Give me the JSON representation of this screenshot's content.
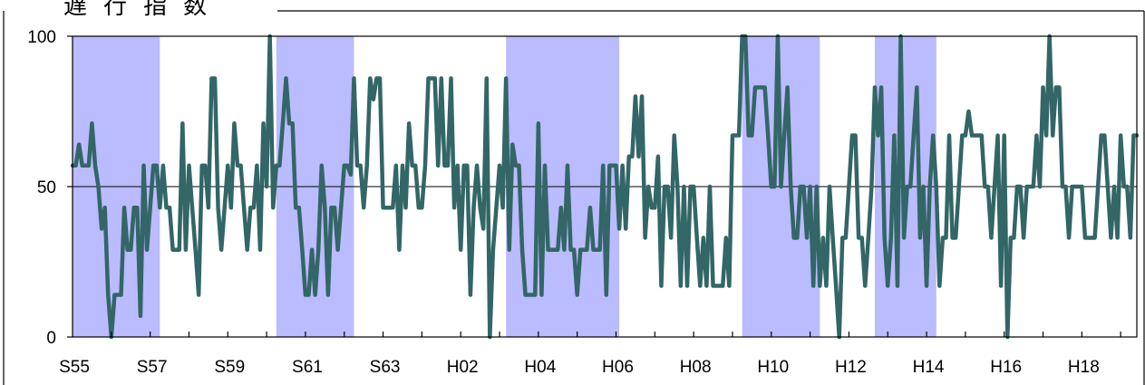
{
  "title": "遅行指数",
  "chart_data": {
    "type": "line",
    "title": "遅行指数",
    "xlabel": "",
    "ylabel": "",
    "ylim": [
      0,
      100
    ],
    "y_ticks": [
      0,
      50,
      100
    ],
    "x_ticks": [
      "S55",
      "S57",
      "S59",
      "S61",
      "S63",
      "H02",
      "H04",
      "H06",
      "H08",
      "H10",
      "H12",
      "H14",
      "H16",
      "H18"
    ],
    "x_tick_months": [
      0,
      24,
      48,
      72,
      96,
      120,
      144,
      168,
      192,
      216,
      240,
      264,
      288,
      312
    ],
    "x_range_months": [
      0,
      329
    ],
    "reference_line": 50,
    "grid": false,
    "legend": "none",
    "colors": {
      "line": "#336666",
      "band": "#bbbbff",
      "reference": "#000000",
      "axis": "#000000"
    },
    "shaded_periods_months": [
      [
        0,
        27
      ],
      [
        63,
        87
      ],
      [
        134,
        169
      ],
      [
        207,
        231
      ],
      [
        248,
        267
      ]
    ],
    "series": [
      {
        "name": "",
        "values": [
          57,
          57,
          64,
          57,
          57,
          57,
          71,
          57,
          50,
          36,
          43,
          14,
          0,
          14,
          14,
          14,
          43,
          29,
          29,
          43,
          43,
          7,
          57,
          29,
          43,
          57,
          57,
          43,
          57,
          43,
          43,
          29,
          29,
          29,
          71,
          29,
          57,
          43,
          29,
          14,
          57,
          57,
          43,
          86,
          86,
          43,
          29,
          43,
          57,
          43,
          71,
          57,
          57,
          43,
          29,
          43,
          43,
          57,
          29,
          71,
          50,
          100,
          43,
          57,
          57,
          71,
          86,
          71,
          71,
          43,
          43,
          29,
          14,
          14,
          29,
          14,
          29,
          57,
          43,
          14,
          43,
          43,
          29,
          43,
          57,
          57,
          54,
          86,
          57,
          57,
          43,
          57,
          86,
          79,
          86,
          86,
          43,
          43,
          43,
          43,
          57,
          29,
          57,
          43,
          71,
          57,
          57,
          43,
          43,
          57,
          86,
          86,
          86,
          57,
          86,
          57,
          57,
          86,
          43,
          57,
          29,
          57,
          57,
          14,
          43,
          57,
          43,
          36,
          86,
          0,
          29,
          43,
          57,
          43,
          86,
          29,
          64,
          57,
          57,
          29,
          14,
          14,
          14,
          14,
          71,
          14,
          57,
          29,
          29,
          29,
          29,
          43,
          29,
          57,
          29,
          29,
          14,
          29,
          29,
          29,
          43,
          29,
          29,
          29,
          57,
          14,
          57,
          57,
          57,
          36,
          57,
          36,
          60,
          60,
          80,
          60,
          80,
          33,
          50,
          43,
          43,
          60,
          17,
          50,
          50,
          33,
          67,
          50,
          17,
          50,
          17,
          50,
          50,
          33,
          17,
          33,
          17,
          50,
          17,
          17,
          17,
          17,
          33,
          17,
          67,
          67,
          67,
          100,
          100,
          67,
          67,
          83,
          83,
          83,
          83,
          67,
          50,
          50,
          100,
          50,
          67,
          83,
          50,
          33,
          33,
          50,
          50,
          33,
          50,
          17,
          50,
          17,
          33,
          17,
          50,
          33,
          17,
          0,
          33,
          33,
          50,
          67,
          67,
          33,
          33,
          17,
          33,
          50,
          83,
          67,
          83,
          33,
          17,
          33,
          67,
          17,
          100,
          33,
          50,
          50,
          67,
          83,
          33,
          50,
          17,
          50,
          67,
          50,
          17,
          33,
          33,
          67,
          33,
          33,
          50,
          67,
          67,
          75,
          67,
          67,
          67,
          67,
          50,
          50,
          33,
          50,
          67,
          17,
          67,
          0,
          33,
          33,
          50,
          50,
          33,
          50,
          50,
          50,
          67,
          50,
          83,
          67,
          100,
          67,
          83,
          83,
          50,
          50,
          33,
          50,
          50,
          50,
          50,
          33,
          33,
          33,
          33,
          50,
          67,
          67,
          50,
          33,
          50,
          33,
          67,
          50,
          50,
          33,
          67,
          67
        ]
      }
    ]
  }
}
